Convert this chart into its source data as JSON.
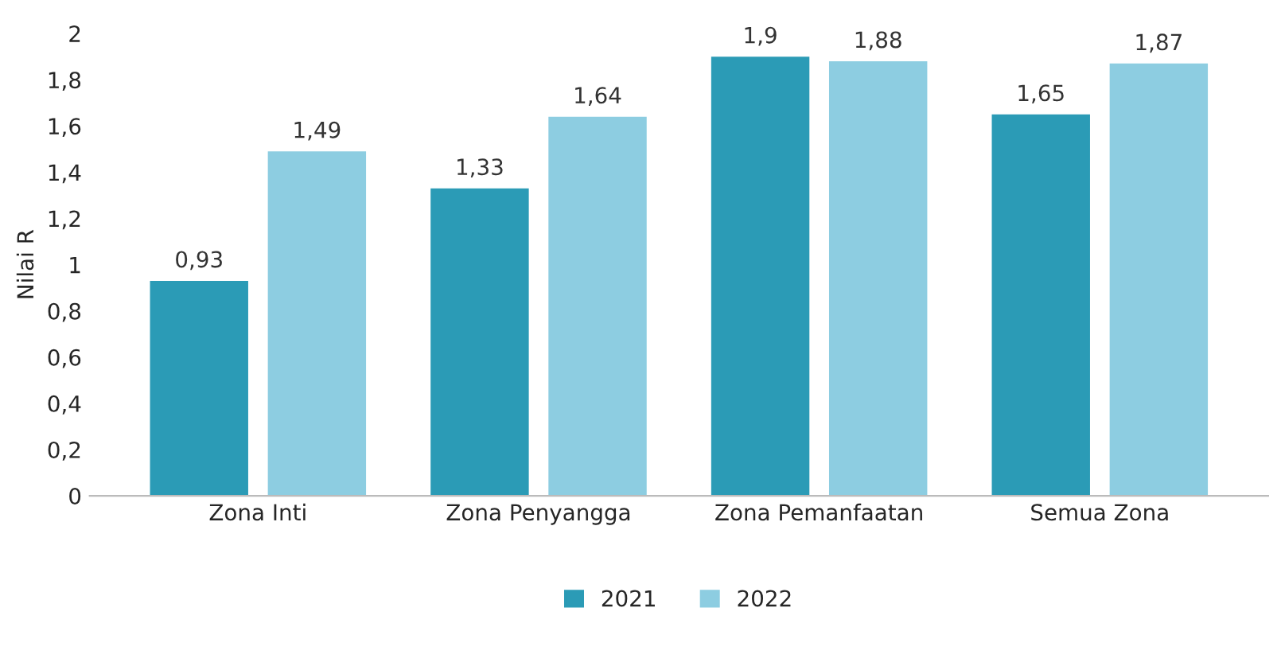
{
  "chart_data": {
    "type": "bar",
    "ylabel": "Nilai R",
    "categories": [
      "Zona Inti",
      "Zona Penyangga",
      "Zona Pemanfaatan",
      "Semua Zona"
    ],
    "series": [
      {
        "name": "2021",
        "color": "#2b9bb6",
        "values": [
          0.93,
          1.33,
          1.9,
          1.65
        ],
        "value_labels": [
          "0,93",
          "1,33",
          "1,9",
          "1,65"
        ]
      },
      {
        "name": "2022",
        "color": "#8dcde1",
        "values": [
          1.49,
          1.64,
          1.88,
          1.87
        ],
        "value_labels": [
          "1,49",
          "1,64",
          "1,88",
          "1,87"
        ]
      }
    ],
    "ylim": [
      0,
      2
    ],
    "yticks": [
      0,
      {
        "value": 0.2,
        "label": "0,2"
      },
      {
        "value": 0.4,
        "label": "0,4"
      },
      {
        "value": 0.6,
        "label": "0,6"
      },
      {
        "value": 0.8,
        "label": "0,8"
      },
      1,
      {
        "value": 1.2,
        "label": "1,2"
      },
      {
        "value": 1.4,
        "label": "1,4"
      },
      {
        "value": 1.6,
        "label": "1,6"
      },
      {
        "value": 1.8,
        "label": "1,8"
      },
      2
    ],
    "grid": false,
    "legend": "bottom"
  }
}
